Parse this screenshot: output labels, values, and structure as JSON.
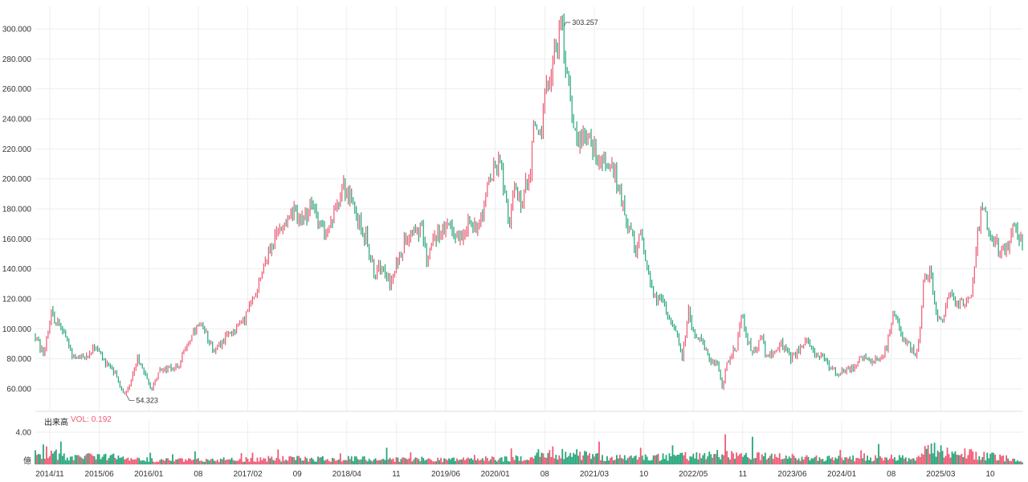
{
  "volume_panel": {
    "title": "出来高",
    "vol_label": "VOL:",
    "vol_value": "0.192",
    "unit": "億"
  },
  "colors": {
    "up": "#ef5a74",
    "down": "#26a67a",
    "grid": "#eeeeee",
    "text": "#333333"
  },
  "chart_data": {
    "type": "candlestick",
    "title": "",
    "xlabel": "",
    "ylabel": "",
    "price_ylim": [
      45,
      315
    ],
    "price_ticks": [
      "60.000",
      "80.000",
      "100.000",
      "120.000",
      "140.000",
      "160.000",
      "180.000",
      "200.000",
      "220.000",
      "240.000",
      "260.000",
      "280.000",
      "300.000"
    ],
    "volume_ylim": [
      0,
      5
    ],
    "volume_ticks": [
      "4.00"
    ],
    "x_ticks": [
      "2014/11",
      "2015/06",
      "2016/01",
      "08",
      "2017/02",
      "09",
      "2018/04",
      "11",
      "2019/06",
      "2020/01",
      "08",
      "2021/03",
      "10",
      "2022/05",
      "11",
      "2023/06",
      "2024/01",
      "08",
      "2025/03",
      "10"
    ],
    "grid": true,
    "annotations": [
      {
        "label": "303.257",
        "type": "max",
        "value": 303.257
      },
      {
        "label": "54.323",
        "type": "min",
        "value": 54.323
      }
    ],
    "close_path": [
      [
        0,
        95
      ],
      [
        10,
        82
      ],
      [
        20,
        110
      ],
      [
        35,
        98
      ],
      [
        45,
        83
      ],
      [
        60,
        80
      ],
      [
        75,
        88
      ],
      [
        85,
        80
      ],
      [
        100,
        70
      ],
      [
        110,
        56
      ],
      [
        118,
        63
      ],
      [
        128,
        80
      ],
      [
        138,
        68
      ],
      [
        145,
        60
      ],
      [
        155,
        72
      ],
      [
        170,
        74
      ],
      [
        180,
        76
      ],
      [
        190,
        90
      ],
      [
        205,
        102
      ],
      [
        215,
        95
      ],
      [
        225,
        85
      ],
      [
        235,
        92
      ],
      [
        250,
        100
      ],
      [
        260,
        105
      ],
      [
        275,
        122
      ],
      [
        285,
        142
      ],
      [
        300,
        160
      ],
      [
        315,
        175
      ],
      [
        325,
        178
      ],
      [
        335,
        170
      ],
      [
        345,
        182
      ],
      [
        355,
        175
      ],
      [
        365,
        160
      ],
      [
        375,
        178
      ],
      [
        385,
        198
      ],
      [
        395,
        185
      ],
      [
        405,
        170
      ],
      [
        415,
        160
      ],
      [
        425,
        135
      ],
      [
        435,
        145
      ],
      [
        445,
        128
      ],
      [
        455,
        148
      ],
      [
        465,
        162
      ],
      [
        475,
        168
      ],
      [
        485,
        165
      ],
      [
        490,
        145
      ],
      [
        500,
        162
      ],
      [
        510,
        165
      ],
      [
        520,
        168
      ],
      [
        530,
        160
      ],
      [
        540,
        170
      ],
      [
        550,
        168
      ],
      [
        560,
        178
      ],
      [
        570,
        200
      ],
      [
        580,
        210
      ],
      [
        588,
        195
      ],
      [
        593,
        170
      ],
      [
        600,
        190
      ],
      [
        610,
        185
      ],
      [
        620,
        208
      ],
      [
        625,
        240
      ],
      [
        632,
        228
      ],
      [
        640,
        258
      ],
      [
        650,
        285
      ],
      [
        660,
        300
      ],
      [
        665,
        275
      ],
      [
        670,
        250
      ],
      [
        680,
        225
      ],
      [
        688,
        232
      ],
      [
        695,
        225
      ],
      [
        705,
        215
      ],
      [
        715,
        210
      ],
      [
        725,
        205
      ],
      [
        735,
        185
      ],
      [
        745,
        165
      ],
      [
        752,
        148
      ],
      [
        758,
        165
      ],
      [
        765,
        145
      ],
      [
        775,
        120
      ],
      [
        785,
        118
      ],
      [
        795,
        108
      ],
      [
        802,
        98
      ],
      [
        810,
        80
      ],
      [
        818,
        112
      ],
      [
        825,
        98
      ],
      [
        835,
        90
      ],
      [
        845,
        80
      ],
      [
        855,
        75
      ],
      [
        860,
        62
      ],
      [
        868,
        80
      ],
      [
        878,
        88
      ],
      [
        885,
        110
      ],
      [
        893,
        90
      ],
      [
        900,
        85
      ],
      [
        910,
        95
      ],
      [
        915,
        80
      ],
      [
        925,
        85
      ],
      [
        935,
        90
      ],
      [
        945,
        80
      ],
      [
        955,
        85
      ],
      [
        965,
        92
      ],
      [
        975,
        85
      ],
      [
        985,
        80
      ],
      [
        995,
        75
      ],
      [
        1005,
        70
      ],
      [
        1015,
        72
      ],
      [
        1025,
        75
      ],
      [
        1035,
        82
      ],
      [
        1045,
        76
      ],
      [
        1055,
        80
      ],
      [
        1065,
        85
      ],
      [
        1075,
        110
      ],
      [
        1085,
        95
      ],
      [
        1095,
        88
      ],
      [
        1102,
        82
      ],
      [
        1108,
        100
      ],
      [
        1112,
        130
      ],
      [
        1120,
        140
      ],
      [
        1128,
        110
      ],
      [
        1135,
        105
      ],
      [
        1145,
        125
      ],
      [
        1155,
        115
      ],
      [
        1165,
        118
      ],
      [
        1172,
        120
      ],
      [
        1178,
        155
      ],
      [
        1185,
        185
      ],
      [
        1192,
        170
      ],
      [
        1200,
        160
      ],
      [
        1210,
        150
      ],
      [
        1220,
        158
      ],
      [
        1225,
        175
      ],
      [
        1230,
        165
      ],
      [
        1236,
        155
      ]
    ],
    "volume_path": [
      [
        0,
        1.2
      ],
      [
        10,
        1.6
      ],
      [
        20,
        1.3
      ],
      [
        50,
        0.9
      ],
      [
        100,
        0.9
      ],
      [
        118,
        0.6
      ],
      [
        200,
        0.5
      ],
      [
        300,
        0.7
      ],
      [
        400,
        0.7
      ],
      [
        500,
        0.6
      ],
      [
        600,
        0.7
      ],
      [
        665,
        1.4
      ],
      [
        720,
        0.8
      ],
      [
        800,
        0.9
      ],
      [
        860,
        1.3
      ],
      [
        900,
        1.0
      ],
      [
        1000,
        0.7
      ],
      [
        1100,
        0.8
      ],
      [
        1120,
        1.8
      ],
      [
        1178,
        1.2
      ],
      [
        1236,
        0.5
      ]
    ]
  }
}
